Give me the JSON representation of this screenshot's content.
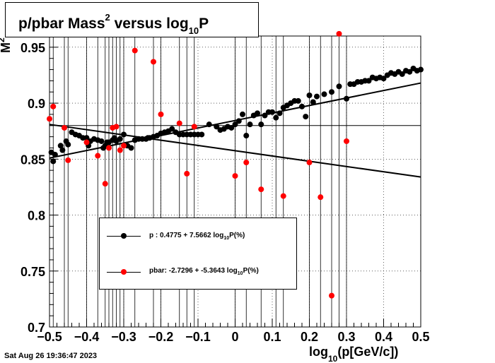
{
  "chart_data": {
    "type": "scatter",
    "title": {
      "main": "p/pbar Mass",
      "sup": "2",
      "mid": " versus log",
      "sub": "10",
      "end": "P"
    },
    "y_axis_label": {
      "main": "M",
      "sup": "2"
    },
    "x_axis_label": {
      "pre": "log",
      "sub": "10",
      "post": "(p[GeV/c])"
    },
    "xlim": [
      -0.5,
      0.5
    ],
    "ylim": [
      0.7,
      0.96
    ],
    "xticks": [
      -0.5,
      -0.4,
      -0.3,
      -0.2,
      -0.1,
      0,
      0.1,
      0.2,
      0.3,
      0.4,
      0.5
    ],
    "xtick_labels": [
      "−0.5",
      "−0.4",
      "−0.3",
      "−0.2",
      "−0.1",
      "0",
      "0.1",
      "0.2",
      "0.3",
      "0.4",
      "0.5"
    ],
    "yticks": [
      0.7,
      0.75,
      0.8,
      0.85,
      0.9,
      0.95
    ],
    "ytick_labels": [
      "0.7",
      "0.75",
      "0.8",
      "0.85",
      "0.9",
      "0.95"
    ],
    "grid": true,
    "reference_line_y": 0.88,
    "series": [
      {
        "name": "p",
        "color": "#000000",
        "fit": {
          "x": [
            -0.5,
            0.5
          ],
          "y": [
            0.851,
            0.918
          ]
        },
        "x": [
          -0.495,
          -0.49,
          -0.485,
          -0.47,
          -0.465,
          -0.455,
          -0.45,
          -0.44,
          -0.43,
          -0.42,
          -0.41,
          -0.4,
          -0.395,
          -0.39,
          -0.38,
          -0.37,
          -0.36,
          -0.355,
          -0.35,
          -0.345,
          -0.34,
          -0.33,
          -0.325,
          -0.32,
          -0.31,
          -0.3,
          -0.29,
          -0.28,
          -0.27,
          -0.26,
          -0.25,
          -0.24,
          -0.235,
          -0.23,
          -0.22,
          -0.21,
          -0.2,
          -0.19,
          -0.18,
          -0.17,
          -0.16,
          -0.15,
          -0.14,
          -0.13,
          -0.12,
          -0.11,
          -0.1,
          -0.09,
          -0.07,
          -0.05,
          -0.04,
          -0.03,
          -0.02,
          -0.01,
          0,
          0.01,
          0.02,
          0.03,
          0.04,
          0.05,
          0.06,
          0.07,
          0.08,
          0.09,
          0.1,
          0.11,
          0.12,
          0.13,
          0.14,
          0.15,
          0.16,
          0.17,
          0.18,
          0.19,
          0.2,
          0.21,
          0.22,
          0.24,
          0.26,
          0.28,
          0.3,
          0.31,
          0.32,
          0.33,
          0.34,
          0.35,
          0.36,
          0.37,
          0.38,
          0.39,
          0.4,
          0.41,
          0.42,
          0.43,
          0.44,
          0.45,
          0.46,
          0.47,
          0.48,
          0.49,
          0.5
        ],
        "y": [
          0.856,
          0.848,
          0.854,
          0.862,
          0.858,
          0.866,
          0.863,
          0.874,
          0.872,
          0.871,
          0.869,
          0.869,
          0.862,
          0.866,
          0.868,
          0.867,
          0.866,
          0.86,
          0.862,
          0.865,
          0.865,
          0.867,
          0.869,
          0.866,
          0.868,
          0.872,
          0.862,
          0.86,
          0.867,
          0.868,
          0.868,
          0.868,
          0.869,
          0.869,
          0.87,
          0.871,
          0.873,
          0.874,
          0.875,
          0.877,
          0.874,
          0.872,
          0.872,
          0.872,
          0.872,
          0.872,
          0.872,
          0.872,
          0.881,
          0.879,
          0.876,
          0.877,
          0.879,
          0.878,
          0.881,
          0.884,
          0.89,
          0.871,
          0.881,
          0.889,
          0.891,
          0.881,
          0.889,
          0.892,
          0.892,
          0.887,
          0.891,
          0.896,
          0.898,
          0.9,
          0.902,
          0.902,
          0.897,
          0.888,
          0.907,
          0.901,
          0.906,
          0.908,
          0.91,
          0.915,
          0.904,
          0.917,
          0.917,
          0.919,
          0.919,
          0.92,
          0.92,
          0.923,
          0.922,
          0.923,
          0.922,
          0.925,
          0.927,
          0.926,
          0.928,
          0.926,
          0.929,
          0.928,
          0.931,
          0.929,
          0.93
        ]
      },
      {
        "name": "pbar",
        "color": "#ff0000",
        "fit": {
          "x": [
            -0.5,
            0.5
          ],
          "y": [
            0.881,
            0.834
          ]
        },
        "x": [
          -0.5,
          -0.49,
          -0.46,
          -0.45,
          -0.4,
          -0.37,
          -0.35,
          -0.34,
          -0.33,
          -0.32,
          -0.31,
          -0.3,
          -0.27,
          -0.22,
          -0.2,
          -0.15,
          -0.13,
          -0.11,
          0,
          0.03,
          0.07,
          0.11,
          0.13,
          0.2,
          0.23,
          0.26,
          0.28,
          0.3
        ],
        "y": [
          0.886,
          0.897,
          0.878,
          0.849,
          0.865,
          0.853,
          0.828,
          0.86,
          0.878,
          0.879,
          0.858,
          0.862,
          0.947,
          0.937,
          0.89,
          0.882,
          0.837,
          0.879,
          0.835,
          0.847,
          0.823,
          0.736,
          0.817,
          0.847,
          0.816,
          0.728,
          0.962,
          0.866
        ]
      }
    ]
  },
  "legend": [
    {
      "label": "p  : 0.4775 + 7.5662 log",
      "sub": "10",
      "post": "P(%)"
    },
    {
      "label": "pbar: -2.7296 + -5.3643 log",
      "sub": "10",
      "post": "P(%)"
    }
  ],
  "timestamp": "Sat Aug 26 19:36:47 2023"
}
